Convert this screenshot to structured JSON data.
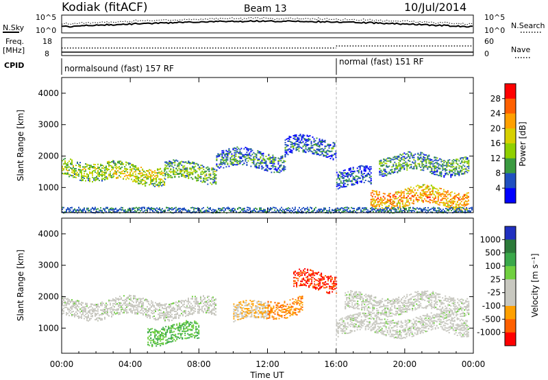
{
  "header": {
    "station": "Kodiak (fitACF)",
    "beam": "Beam 13",
    "date": "10/Jul/2014"
  },
  "top_panels": {
    "nsky_label": "N.Sky",
    "nsky_ticks": [
      "10^5",
      "10^0"
    ],
    "nsearch_label": "N.Search",
    "nsearch_ticks": [
      "10^5",
      "10^0"
    ],
    "freq_label_line1": "Freq.",
    "freq_label_line2": "[MHz]",
    "freq_ticks": [
      "18",
      "8"
    ],
    "nave_label": "Nave",
    "nave_ticks": [
      "60",
      "0"
    ],
    "cpid_label": "CPID",
    "cpid_segments": [
      "normalsound (fast) 157 RF",
      "normal (fast) 151 RF"
    ]
  },
  "power_panel": {
    "ylabel": "Slant Range [km]",
    "yticks": [
      "4000",
      "3000",
      "2000",
      "1000"
    ],
    "colorbar_label": "Power [dB]",
    "colorbar_ticks": [
      "28",
      "24",
      "20",
      "16",
      "12",
      "8",
      "4"
    ],
    "colorbar_colors": [
      "#ff0000",
      "#ff6000",
      "#ffa000",
      "#d7d000",
      "#90d000",
      "#3a9a40",
      "#2050c0",
      "#0000ff"
    ]
  },
  "velocity_panel": {
    "ylabel": "Slant Range [km]",
    "yticks": [
      "4000",
      "3000",
      "2000",
      "1000"
    ],
    "colorbar_label": "Velocity [m s⁻¹]",
    "colorbar_ticks": [
      "1000",
      "500",
      "100",
      "25",
      "-25",
      "-100",
      "-500",
      "-1000"
    ],
    "colorbar_colors": [
      "#2030c0",
      "#2c7a3a",
      "#3aa84a",
      "#70d040",
      "#c8c8c0",
      "#c8c8c0",
      "#ffa000",
      "#ff6000",
      "#ff0000"
    ]
  },
  "xaxis": {
    "label": "Time UT",
    "ticks": [
      "00:00",
      "04:00",
      "08:00",
      "12:00",
      "16:00",
      "20:00",
      "00:00"
    ]
  },
  "chart_data": {
    "type": "heatmap",
    "x_unit": "hours UT",
    "xlim": [
      0,
      24
    ],
    "ylim": [
      200,
      4500
    ],
    "mode_change_hour": 16,
    "power_bands": [
      {
        "start": 0.0,
        "end": 3.0,
        "range_km": 1600,
        "level_db": 16
      },
      {
        "start": 3.0,
        "end": 6.0,
        "range_km": 1450,
        "level_db": 18
      },
      {
        "start": 6.0,
        "end": 9.0,
        "range_km": 1500,
        "level_db": 14
      },
      {
        "start": 9.0,
        "end": 13.0,
        "range_km": 1900,
        "level_db": 10
      },
      {
        "start": 13.0,
        "end": 16.0,
        "range_km": 2300,
        "level_db": 8
      },
      {
        "start": 16.0,
        "end": 18.0,
        "range_km": 1300,
        "level_db": 8
      },
      {
        "start": 18.0,
        "end": 23.7,
        "range_km": 700,
        "level_db": 24
      },
      {
        "start": 18.5,
        "end": 23.7,
        "range_km": 1750,
        "level_db": 12
      }
    ],
    "velocity_bands": [
      {
        "start": 0.0,
        "end": 9.0,
        "range_km": 1650,
        "velocity": 0
      },
      {
        "start": 5.0,
        "end": 8.0,
        "range_km": 850,
        "velocity": 100
      },
      {
        "start": 10.0,
        "end": 12.0,
        "range_km": 1500,
        "velocity": -100
      },
      {
        "start": 12.0,
        "end": 14.0,
        "range_km": 1700,
        "velocity": -500
      },
      {
        "start": 13.5,
        "end": 16.0,
        "range_km": 2500,
        "velocity": -1000
      },
      {
        "start": 16.0,
        "end": 23.7,
        "range_km": 1100,
        "velocity": 0
      },
      {
        "start": 16.5,
        "end": 23.7,
        "range_km": 1800,
        "velocity": 0
      }
    ]
  }
}
